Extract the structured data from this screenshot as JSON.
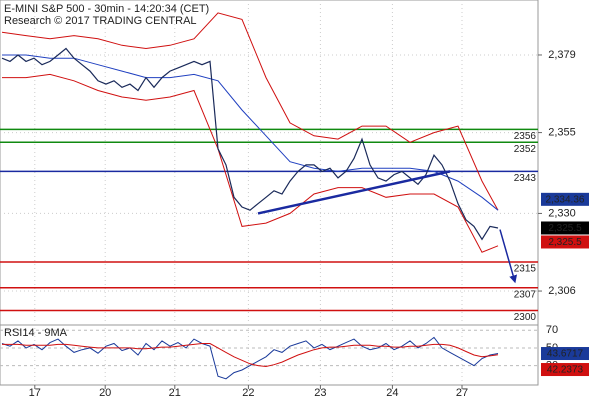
{
  "chart_data": {
    "type": "line",
    "title": "E-MINI S&P 500 - 30min - 14:20:34 (CET)",
    "subtitle": "Research © 2017 TRADING CENTRAL",
    "x": [
      0,
      1,
      2,
      3,
      4,
      5,
      6,
      7,
      8,
      9,
      10,
      11,
      12,
      13,
      14,
      15,
      16,
      17,
      18,
      19,
      20,
      21,
      22,
      23,
      24,
      25,
      26,
      27,
      28,
      29,
      30,
      31,
      32,
      33,
      34,
      35,
      36,
      37,
      38,
      39,
      40,
      41,
      42,
      43,
      44,
      45,
      46,
      47,
      48,
      49,
      50,
      51,
      52,
      53,
      54,
      55,
      56,
      57,
      58,
      59,
      60,
      61,
      62
    ],
    "xlim": [
      -0.25,
      67
    ],
    "xticks": [
      {
        "value": 4.1,
        "label": "17"
      },
      {
        "value": 12.9,
        "label": "20"
      },
      {
        "value": 21.6,
        "label": "21"
      },
      {
        "value": 30.8,
        "label": "22"
      },
      {
        "value": 39.8,
        "label": "23"
      },
      {
        "value": 48.8,
        "label": "24"
      },
      {
        "value": 57.5,
        "label": "27"
      }
    ],
    "ylim": [
      2295.5,
      2396
    ],
    "yticks": [
      {
        "value": 2379,
        "label": "2,379"
      },
      {
        "value": 2355,
        "label": "2,355"
      },
      {
        "value": 2330,
        "label": "2,330"
      },
      {
        "value": 2306,
        "label": "2,306"
      }
    ],
    "grid": true,
    "series": [
      {
        "color": "#1a2a5a",
        "values": [
          2378,
          2377,
          2379,
          2377,
          2378,
          2376,
          2377,
          2379,
          2381,
          2378,
          2376,
          2374,
          2371,
          2370,
          2371,
          2369,
          2370,
          2368,
          2372,
          2369,
          2372,
          2374,
          2375,
          2376,
          2377,
          2376,
          2377,
          2350,
          2345,
          2335,
          2332,
          2331,
          2333,
          2335,
          2337,
          2336,
          2340,
          2343,
          2345,
          2345,
          2343,
          2344,
          2341,
          2343,
          2347,
          2353,
          2345,
          2341,
          2340,
          2342,
          2343,
          2341,
          2339,
          2342,
          2348,
          2345,
          2340,
          2333,
          2328,
          2326,
          2322,
          2326,
          2325.5
        ]
      },
      {
        "color": "#d01010",
        "x": [
          0,
          3,
          6,
          9,
          12,
          15,
          18,
          21,
          24,
          27,
          30,
          33,
          36,
          39,
          42,
          45,
          48,
          51,
          54,
          57,
          60,
          62
        ],
        "values": [
          2386,
          2385,
          2384,
          2385,
          2384,
          2382,
          2381,
          2382,
          2384,
          2392,
          2390,
          2372,
          2358,
          2354,
          2353,
          2357,
          2357,
          2352,
          2355,
          2357,
          2340,
          2331
        ]
      },
      {
        "color": "#d01010",
        "x": [
          0,
          3,
          6,
          9,
          12,
          15,
          18,
          21,
          24,
          27,
          30,
          33,
          36,
          39,
          42,
          45,
          48,
          51,
          54,
          57,
          60,
          62
        ],
        "values": [
          2372,
          2372,
          2373,
          2371,
          2368,
          2366,
          2365,
          2366,
          2368,
          2350,
          2326,
          2327,
          2330,
          2336,
          2338,
          2338,
          2335,
          2336,
          2336,
          2332,
          2318,
          2320
        ]
      },
      {
        "color": "#2040c0",
        "x": [
          0,
          3,
          6,
          9,
          12,
          15,
          18,
          21,
          24,
          27,
          30,
          33,
          36,
          39,
          42,
          45,
          48,
          51,
          54,
          57,
          60,
          62
        ],
        "values": [
          2379,
          2379,
          2378,
          2378,
          2376,
          2374,
          2372,
          2372,
          2373,
          2371,
          2362,
          2354,
          2346,
          2344,
          2343,
          2344,
          2344,
          2344,
          2343,
          2340,
          2335,
          2331
        ]
      }
    ],
    "levels": [
      {
        "value": 2356,
        "color": "#108a10"
      },
      {
        "value": 2352,
        "color": "#108a10"
      },
      {
        "value": 2343,
        "color": "#1a2aa0"
      },
      {
        "value": 2315,
        "color": "#d01010"
      },
      {
        "value": 2307,
        "color": "#d01010"
      },
      {
        "value": 2300,
        "color": "#d01010"
      }
    ],
    "trendlines": [
      {
        "x": [
          32,
          56
        ],
        "values": [
          2330,
          2343
        ],
        "color": "#1a2aa0"
      },
      {
        "x": [
          62.25,
          64.1
        ],
        "values": [
          2325,
          2309
        ],
        "color": "#1a2aa0",
        "arrow": true
      }
    ],
    "price_tags": [
      {
        "value": 2334.36,
        "label": "2,334.36",
        "color": "#1a3a9a"
      },
      {
        "value": 2325.5,
        "label": "2,325.5",
        "color": "#000000"
      },
      {
        "value": 2325.5,
        "label": "2,325.5",
        "color": "#d01010"
      }
    ],
    "rsi": {
      "title": "RSI14 - 9MA",
      "ylim": [
        8,
        76
      ],
      "yticks": [
        70,
        50,
        30
      ],
      "series": [
        {
          "color": "#1a3a9a",
          "values": [
            55,
            52,
            58,
            50,
            54,
            48,
            56,
            60,
            52,
            45,
            48,
            50,
            44,
            52,
            55,
            47,
            50,
            42,
            55,
            48,
            58,
            52,
            56,
            50,
            60,
            55,
            52,
            18,
            15,
            22,
            25,
            30,
            35,
            40,
            48,
            45,
            52,
            55,
            58,
            50,
            54,
            48,
            52,
            56,
            60,
            52,
            48,
            50,
            55,
            48,
            52,
            58,
            50,
            55,
            62,
            50,
            45,
            40,
            35,
            30,
            38,
            42,
            43.6717
          ]
        },
        {
          "color": "#d01010",
          "values": [
            54,
            54,
            54,
            53,
            53,
            53,
            53,
            54,
            54,
            53,
            52,
            51,
            50,
            50,
            50,
            50,
            50,
            49,
            49,
            50,
            51,
            51,
            52,
            53,
            54,
            55,
            55,
            50,
            45,
            40,
            36,
            32,
            30,
            29,
            31,
            34,
            38,
            42,
            45,
            48,
            50,
            51,
            51,
            52,
            53,
            53,
            53,
            52,
            52,
            51,
            51,
            52,
            52,
            53,
            54,
            54,
            53,
            50,
            46,
            42,
            40,
            41,
            42.2373
          ]
        }
      ]
    }
  }
}
